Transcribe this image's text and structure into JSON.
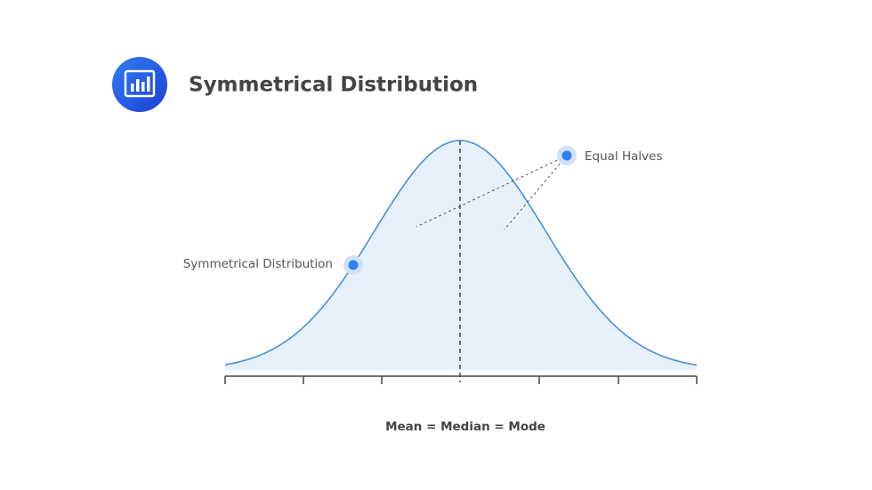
{
  "header": {
    "title": "Symmetrical Distribution"
  },
  "annotations": [
    {
      "label": "Equal Halves"
    },
    {
      "label": "Symmetrical Distribution"
    }
  ],
  "axis_label": "Mean = Median = Mode"
}
